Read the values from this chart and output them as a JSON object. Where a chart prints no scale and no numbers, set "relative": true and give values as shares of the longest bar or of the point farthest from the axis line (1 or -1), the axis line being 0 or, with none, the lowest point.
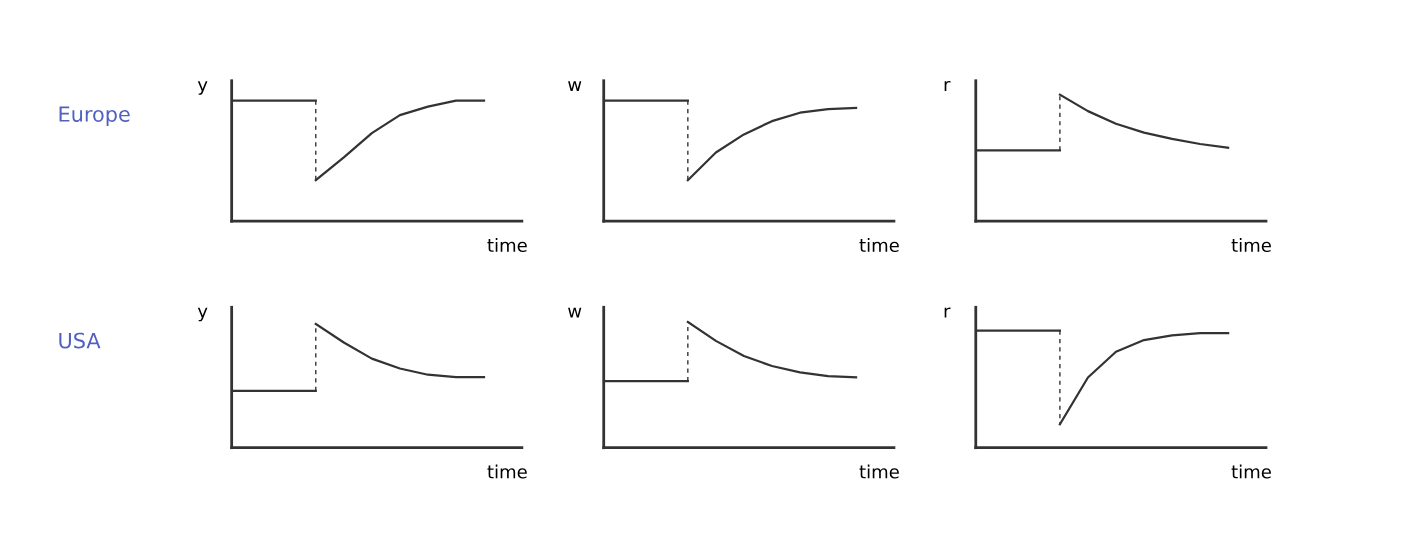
{
  "chart_data": [
    {
      "type": "line",
      "relative": true,
      "tick_labels": false,
      "ylabel": "y",
      "xlabel": "time",
      "annotations": [
        "Europe"
      ],
      "categories": [
        null,
        null,
        null,
        null,
        null,
        null,
        null,
        null,
        null,
        null
      ],
      "series": [
        {
          "color": "#333333",
          "line_style": "solid",
          "values": [
            1.0,
            1.0,
            1.0,
            1.0,
            null,
            null,
            null,
            null,
            null,
            null
          ]
        },
        {
          "color": "#333333",
          "line_style": "solid",
          "values": [
            null,
            null,
            null,
            0.34,
            0.53,
            0.73,
            0.88,
            0.95,
            1.0,
            1.0
          ]
        }
      ]
    },
    {
      "type": "line",
      "relative": true,
      "tick_labels": false,
      "ylabel": "w",
      "xlabel": "time",
      "categories": [
        null,
        null,
        null,
        null,
        null,
        null,
        null,
        null,
        null,
        null
      ],
      "series": [
        {
          "color": "#333333",
          "line_style": "solid",
          "values": [
            1.0,
            1.0,
            1.0,
            1.0,
            null,
            null,
            null,
            null,
            null,
            null
          ]
        },
        {
          "color": "#333333",
          "line_style": "solid",
          "values": [
            null,
            null,
            null,
            0.34,
            0.57,
            0.72,
            0.83,
            0.9,
            0.93,
            0.94
          ]
        }
      ]
    },
    {
      "type": "line",
      "relative": true,
      "tick_labels": false,
      "ylabel": "r",
      "xlabel": "time",
      "categories": [
        null,
        null,
        null,
        null,
        null,
        null,
        null,
        null,
        null,
        null
      ],
      "series": [
        {
          "color": "#333333",
          "line_style": "solid",
          "values": [
            0.56,
            0.56,
            0.56,
            0.56,
            null,
            null,
            null,
            null,
            null,
            null
          ]
        },
        {
          "color": "#333333",
          "line_style": "solid",
          "values": [
            null,
            null,
            null,
            1.0,
            0.87,
            0.77,
            0.7,
            0.65,
            0.61,
            0.58
          ]
        }
      ]
    },
    {
      "type": "line",
      "relative": true,
      "tick_labels": false,
      "ylabel": "y",
      "xlabel": "time",
      "annotations": [
        "USA"
      ],
      "categories": [
        null,
        null,
        null,
        null,
        null,
        null,
        null,
        null,
        null,
        null
      ],
      "series": [
        {
          "color": "#333333",
          "line_style": "solid",
          "values": [
            0.46,
            0.46,
            0.46,
            0.46,
            null,
            null,
            null,
            null,
            null,
            null
          ]
        },
        {
          "color": "#333333",
          "line_style": "solid",
          "values": [
            null,
            null,
            null,
            1.0,
            0.85,
            0.72,
            0.64,
            0.59,
            0.57,
            0.57
          ]
        }
      ]
    },
    {
      "type": "line",
      "relative": true,
      "tick_labels": false,
      "ylabel": "w",
      "xlabel": "time",
      "categories": [
        null,
        null,
        null,
        null,
        null,
        null,
        null,
        null,
        null,
        null
      ],
      "series": [
        {
          "color": "#333333",
          "line_style": "solid",
          "values": [
            0.53,
            0.53,
            0.53,
            0.53,
            null,
            null,
            null,
            null,
            null,
            null
          ]
        },
        {
          "color": "#333333",
          "line_style": "solid",
          "values": [
            null,
            null,
            null,
            1.0,
            0.85,
            0.73,
            0.65,
            0.6,
            0.57,
            0.56
          ]
        }
      ]
    },
    {
      "type": "line",
      "relative": true,
      "tick_labels": false,
      "ylabel": "r",
      "xlabel": "time",
      "categories": [
        null,
        null,
        null,
        null,
        null,
        null,
        null,
        null,
        null,
        null
      ],
      "series": [
        {
          "color": "#333333",
          "line_style": "solid",
          "values": [
            1.0,
            1.0,
            1.0,
            1.0,
            null,
            null,
            null,
            null,
            null,
            null
          ]
        },
        {
          "color": "#333333",
          "line_style": "solid",
          "values": [
            null,
            null,
            null,
            0.2,
            0.6,
            0.82,
            0.92,
            0.96,
            0.98,
            0.98
          ]
        }
      ]
    }
  ]
}
